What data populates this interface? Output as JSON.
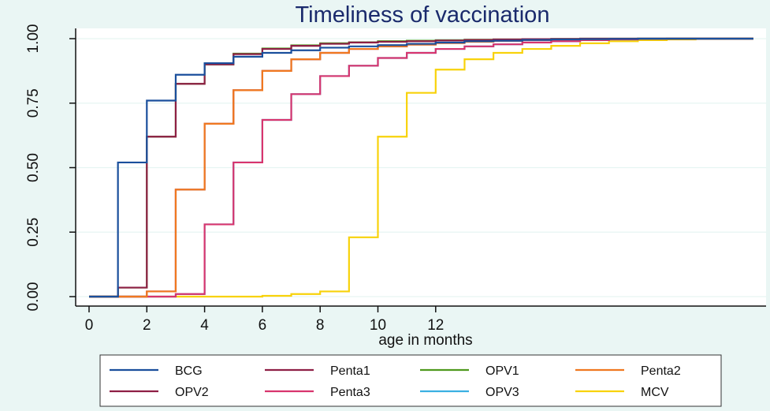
{
  "chart_data": {
    "type": "line",
    "subtype": "step",
    "title": "Timeliness of vaccination",
    "xlabel": "age in months",
    "ylabel": "",
    "xlim": [
      0,
      23
    ],
    "ylim": [
      0,
      1
    ],
    "xticks": [
      0,
      2,
      4,
      6,
      8,
      10,
      12
    ],
    "xtick_labels": [
      "0",
      "2",
      "4",
      "6",
      "8",
      "10",
      "12"
    ],
    "yticks": [
      0,
      0.25,
      0.5,
      0.75,
      1.0
    ],
    "ytick_labels": [
      "0.00",
      "0.25",
      "0.50",
      "0.75",
      "1.00"
    ],
    "grid": true,
    "legend_position": "bottom",
    "legend_columns": 4,
    "x": [
      0,
      1,
      2,
      3,
      4,
      5,
      6,
      7,
      8,
      9,
      10,
      11,
      12,
      13,
      14,
      15,
      16,
      17,
      18,
      19,
      20,
      21,
      22,
      23
    ],
    "series": [
      {
        "name": "BCG",
        "color": "#1a4f9c",
        "values": [
          0,
          0.52,
          0.76,
          0.86,
          0.905,
          0.93,
          0.945,
          0.955,
          0.965,
          0.97,
          0.975,
          0.98,
          0.985,
          0.99,
          0.992,
          0.995,
          0.997,
          0.998,
          0.999,
          1.0,
          1.0,
          1.0,
          1.0,
          1.0
        ]
      },
      {
        "name": "Penta1",
        "color": "#8e1f45",
        "values": [
          0,
          0.035,
          0.62,
          0.825,
          0.9,
          0.94,
          0.96,
          0.972,
          0.98,
          0.985,
          0.988,
          0.99,
          0.993,
          0.995,
          0.997,
          0.998,
          0.999,
          1.0,
          1.0,
          1.0,
          1.0,
          1.0,
          1.0,
          1.0
        ]
      },
      {
        "name": "OPV1",
        "color": "#4f9a1e",
        "values": [
          0,
          0.035,
          0.62,
          0.825,
          0.9,
          0.942,
          0.962,
          0.974,
          0.982,
          0.986,
          0.99,
          0.992,
          0.994,
          0.996,
          0.997,
          0.998,
          0.999,
          1.0,
          1.0,
          1.0,
          1.0,
          1.0,
          1.0,
          1.0
        ]
      },
      {
        "name": "Penta2",
        "color": "#f07820",
        "values": [
          0,
          0,
          0.02,
          0.415,
          0.67,
          0.8,
          0.875,
          0.92,
          0.945,
          0.96,
          0.97,
          0.977,
          0.983,
          0.988,
          0.992,
          0.995,
          0.997,
          0.998,
          0.999,
          1.0,
          1.0,
          1.0,
          1.0,
          1.0
        ]
      },
      {
        "name": "OPV2",
        "color": "#8e1f45",
        "values": [
          0,
          0,
          0.02,
          0.415,
          0.67,
          0.8,
          0.875,
          0.92,
          0.945,
          0.96,
          0.97,
          0.977,
          0.983,
          0.988,
          0.992,
          0.995,
          0.997,
          0.998,
          0.999,
          1.0,
          1.0,
          1.0,
          1.0,
          1.0
        ]
      },
      {
        "name": "Penta3",
        "color": "#d8356e",
        "values": [
          0,
          0,
          0,
          0.01,
          0.28,
          0.52,
          0.685,
          0.785,
          0.855,
          0.895,
          0.925,
          0.945,
          0.96,
          0.97,
          0.978,
          0.985,
          0.99,
          0.994,
          0.997,
          0.999,
          1.0,
          1.0,
          1.0,
          1.0
        ]
      },
      {
        "name": "OPV3",
        "color": "#3ab0e2",
        "values": [
          0,
          0,
          0,
          0.01,
          0.28,
          0.52,
          0.685,
          0.785,
          0.855,
          0.895,
          0.925,
          0.945,
          0.96,
          0.97,
          0.978,
          0.985,
          0.99,
          0.994,
          0.997,
          0.999,
          1.0,
          1.0,
          1.0,
          1.0
        ]
      },
      {
        "name": "MCV",
        "color": "#f8d20a",
        "values": [
          0,
          0,
          0,
          0,
          0,
          0,
          0.003,
          0.01,
          0.02,
          0.23,
          0.62,
          0.79,
          0.88,
          0.92,
          0.945,
          0.96,
          0.972,
          0.982,
          0.99,
          0.994,
          0.997,
          0.999,
          1.0,
          1.0
        ]
      }
    ],
    "legend_order": [
      "BCG",
      "Penta1",
      "OPV1",
      "Penta2",
      "OPV2",
      "Penta3",
      "OPV3",
      "MCV"
    ]
  }
}
